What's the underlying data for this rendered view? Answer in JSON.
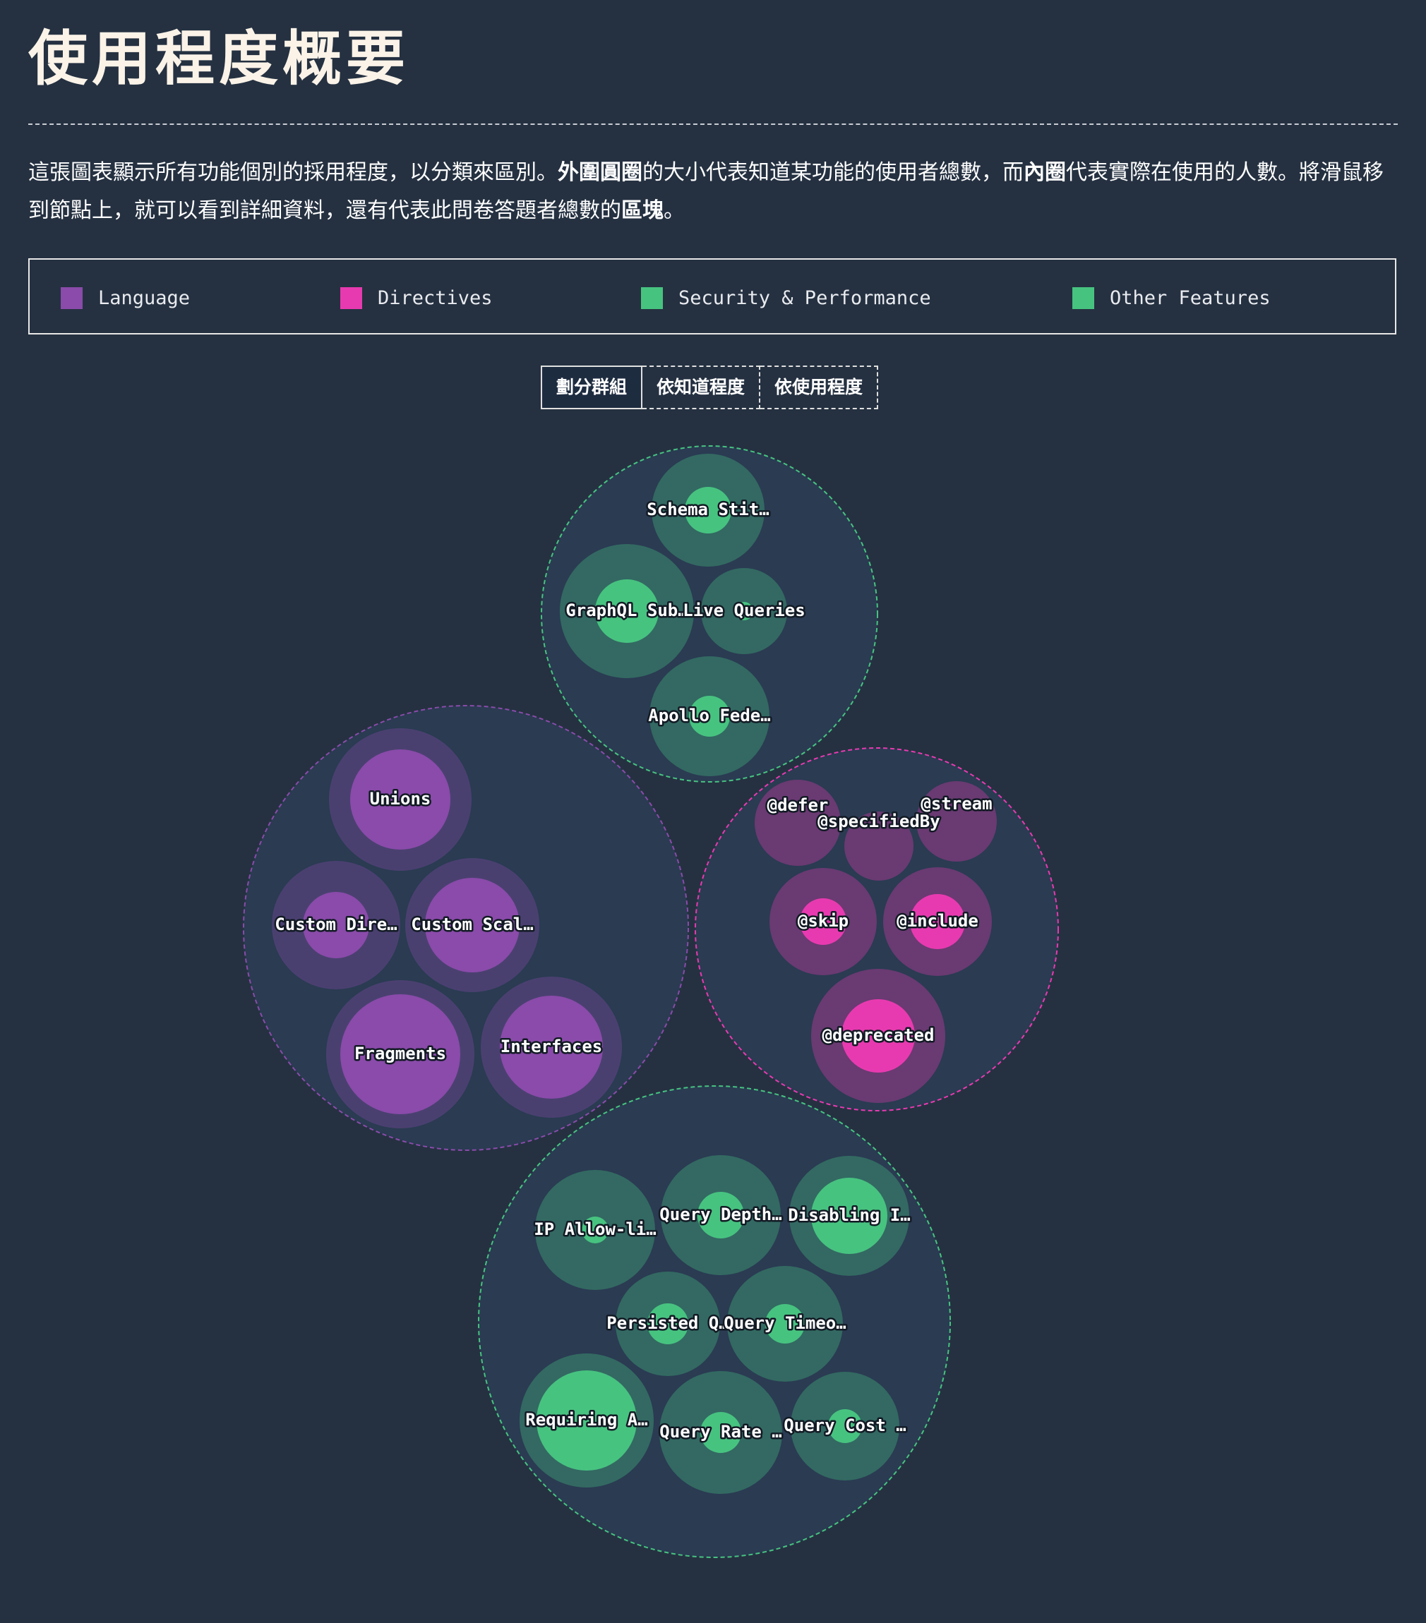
{
  "header": {
    "title": "使用程度概要",
    "intro_1": "這張圖表顯示所有功能個別的採用程度，以分類來區別。",
    "intro_outer": "外圍圓圈",
    "intro_2": "的大小代表知道某功能的使用者總數，而",
    "intro_inner": "內圈",
    "intro_3": "代表實際在使用的人數。將滑鼠移到節點上，就可以看到詳細資料，還有代表此問卷答題者總數的",
    "intro_block": "區塊",
    "intro_4": "。"
  },
  "legend": [
    {
      "label": "Language",
      "color": "#8a4baa"
    },
    {
      "label": "Directives",
      "color": "#e83ab0"
    },
    {
      "label": "Security & Performance",
      "color": "#47c380"
    },
    {
      "label": "Other Features",
      "color": "#47c380"
    }
  ],
  "modes": {
    "group": "劃分群組",
    "by_awareness": "依知道程度",
    "by_usage": "依使用程度",
    "active": "group"
  },
  "chart_data": {
    "type": "bubble",
    "title": "",
    "units": "relative circle radius",
    "groups": [
      {
        "category": "Other Features",
        "color": "#47c380",
        "features": [
          {
            "label": "Schema Stit…",
            "awareness_radius": 80,
            "usage_radius": 33
          },
          {
            "label": "GraphQL Sub…",
            "awareness_radius": 95,
            "usage_radius": 45
          },
          {
            "label": "Live Queries",
            "awareness_radius": 61,
            "usage_radius": 13
          },
          {
            "label": "Apollo Fede…",
            "awareness_radius": 85,
            "usage_radius": 29
          }
        ]
      },
      {
        "category": "Language",
        "color": "#8a4baa",
        "features": [
          {
            "label": "Unions",
            "awareness_radius": 101,
            "usage_radius": 71
          },
          {
            "label": "Custom Dire…",
            "awareness_radius": 91,
            "usage_radius": 47
          },
          {
            "label": "Custom Scal…",
            "awareness_radius": 95,
            "usage_radius": 67
          },
          {
            "label": "Fragments",
            "awareness_radius": 105,
            "usage_radius": 85
          },
          {
            "label": "Interfaces",
            "awareness_radius": 100,
            "usage_radius": 73
          }
        ]
      },
      {
        "category": "Directives",
        "color": "#e83ab0",
        "features": [
          {
            "label": "@defer",
            "awareness_radius": 61,
            "usage_radius": 0
          },
          {
            "label": "@stream",
            "awareness_radius": 57,
            "usage_radius": 0
          },
          {
            "label": "@specifiedBy",
            "awareness_radius": 49,
            "usage_radius": 0
          },
          {
            "label": "@skip",
            "awareness_radius": 76,
            "usage_radius": 33
          },
          {
            "label": "@include",
            "awareness_radius": 77,
            "usage_radius": 39
          },
          {
            "label": "@deprecated",
            "awareness_radius": 95,
            "usage_radius": 52
          }
        ]
      },
      {
        "category": "Security & Performance",
        "color": "#47c380",
        "features": [
          {
            "label": "IP Allow-li…",
            "awareness_radius": 85,
            "usage_radius": 19
          },
          {
            "label": "Query Depth…",
            "awareness_radius": 85,
            "usage_radius": 33
          },
          {
            "label": "Disabling I…",
            "awareness_radius": 85,
            "usage_radius": 54
          },
          {
            "label": "Persisted Q…",
            "awareness_radius": 74,
            "usage_radius": 29
          },
          {
            "label": "Query Timeo…",
            "awareness_radius": 82,
            "usage_radius": 28
          },
          {
            "label": "Requiring A…",
            "awareness_radius": 95,
            "usage_radius": 71
          },
          {
            "label": "Query Rate …",
            "awareness_radius": 87,
            "usage_radius": 29
          },
          {
            "label": "Query Cost …",
            "awareness_radius": 77,
            "usage_radius": 24
          }
        ]
      }
    ]
  }
}
